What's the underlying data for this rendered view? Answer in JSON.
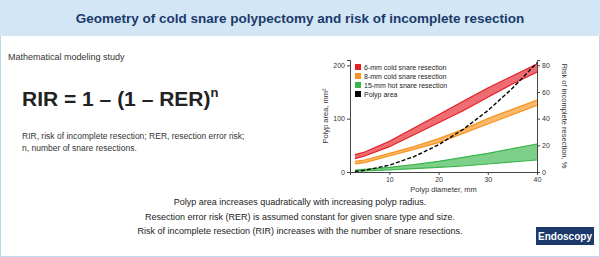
{
  "header": {
    "title": "Geometry of cold snare polypectomy and risk of incomplete resection"
  },
  "study_type": "Mathematical modeling study",
  "formula": {
    "text": "RIR = 1 – (1 – RER)",
    "superscript": "n"
  },
  "definitions": [
    "RIR, risk of incomplete resection; RER, resection error risk;",
    "n, number of snare resections."
  ],
  "chart_data": {
    "type": "line",
    "xlabel": "Polyp diameter, mm",
    "ylabel": "Polyp area, mm²",
    "y2label": "Risk of incomplete resection, %",
    "x": [
      3,
      5,
      10,
      15,
      20,
      25,
      30,
      35,
      40
    ],
    "xlim": [
      2,
      40
    ],
    "xticks": [
      10,
      20,
      30,
      40
    ],
    "ylim": [
      0,
      210
    ],
    "yticks": [
      0,
      100,
      200
    ],
    "y2lim": [
      0,
      84
    ],
    "y2ticks": [
      0,
      20,
      40,
      60,
      80
    ],
    "legend": "upper left",
    "series": [
      {
        "name": "6-mm cold snare resection",
        "type": "area",
        "color": "#e41f26",
        "axis": "y2",
        "lower": [
          10,
          12,
          19,
          28,
          37,
          46,
          56,
          66,
          75
        ],
        "upper": [
          13,
          15,
          23,
          33,
          43,
          53,
          63,
          72,
          81
        ]
      },
      {
        "name": "8-mm cold snare resection",
        "type": "area",
        "color": "#f7941d",
        "axis": "y2",
        "lower": [
          6,
          7,
          12,
          17,
          22,
          29,
          36,
          43,
          50
        ],
        "upper": [
          8,
          9,
          14,
          19,
          25,
          32,
          40,
          47,
          54
        ]
      },
      {
        "name": "15-mm hot snare resection",
        "type": "area",
        "color": "#39b54a",
        "axis": "y2",
        "lower": [
          0.5,
          0.8,
          1.5,
          2.5,
          3.5,
          4.5,
          6,
          7.5,
          9
        ],
        "upper": [
          1.5,
          2,
          3.5,
          5.5,
          8,
          11,
          14,
          17.5,
          21
        ]
      },
      {
        "name": "Polyp area",
        "type": "line",
        "color": "#000000",
        "line_style": "dashed",
        "axis": "y",
        "values": [
          1.2,
          3.2,
          12.8,
          28.8,
          51,
          80,
          115,
          157,
          205
        ]
      }
    ]
  },
  "findings": [
    "Polyp area increases quadratically with increasing polyp radius.",
    "Resection error risk (RER) is assumed constant for given snare type and size.",
    "Risk of incomplete resection (RIR) increases with the number of snare resections."
  ],
  "journal": "Endoscopy"
}
